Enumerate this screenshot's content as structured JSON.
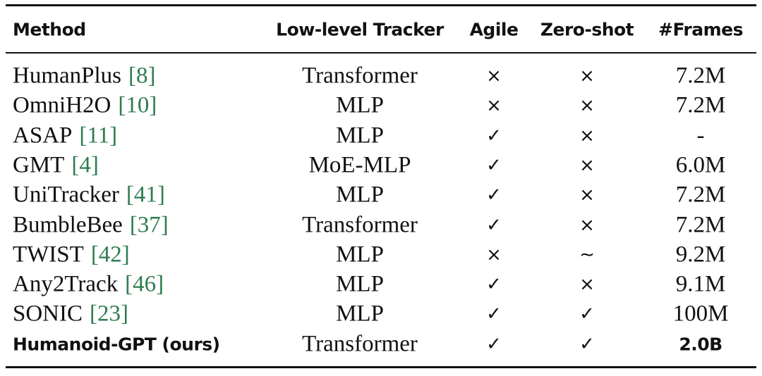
{
  "table": {
    "header": [
      "Method",
      "Low-level Tracker",
      "Agile",
      "Zero-shot",
      "#Frames"
    ],
    "rows": [
      {
        "method": "HumanPlus",
        "ref": "[8]",
        "tracker": "Transformer",
        "agile": "×",
        "zero_shot": "×",
        "frames": "7.2M"
      },
      {
        "method": "OmniH2O",
        "ref": "[10]",
        "tracker": "MLP",
        "agile": "×",
        "zero_shot": "×",
        "frames": "7.2M"
      },
      {
        "method": "ASAP",
        "ref": "[11]",
        "tracker": "MLP",
        "agile": "✓",
        "zero_shot": "×",
        "frames": "-"
      },
      {
        "method": "GMT",
        "ref": "[4]",
        "tracker": "MoE-MLP",
        "agile": "✓",
        "zero_shot": "×",
        "frames": "6.0M"
      },
      {
        "method": "UniTracker",
        "ref": "[41]",
        "tracker": "MLP",
        "agile": "✓",
        "zero_shot": "×",
        "frames": "7.2M"
      },
      {
        "method": "BumbleBee",
        "ref": "[37]",
        "tracker": "Transformer",
        "agile": "✓",
        "zero_shot": "×",
        "frames": "7.2M"
      },
      {
        "method": "TWIST",
        "ref": "[42]",
        "tracker": "MLP",
        "agile": "×",
        "zero_shot": "∼",
        "frames": "9.2M"
      },
      {
        "method": "Any2Track",
        "ref": "[46]",
        "tracker": "MLP",
        "agile": "✓",
        "zero_shot": "×",
        "frames": "9.1M"
      },
      {
        "method": "SONIC",
        "ref": "[23]",
        "tracker": "MLP",
        "agile": "✓",
        "zero_shot": "✓",
        "frames": "100M"
      },
      {
        "method": "Humanoid-GPT (ours)",
        "tracker": "Transformer",
        "agile": "✓",
        "zero_shot": "✓",
        "frames": "2.0B"
      }
    ]
  }
}
